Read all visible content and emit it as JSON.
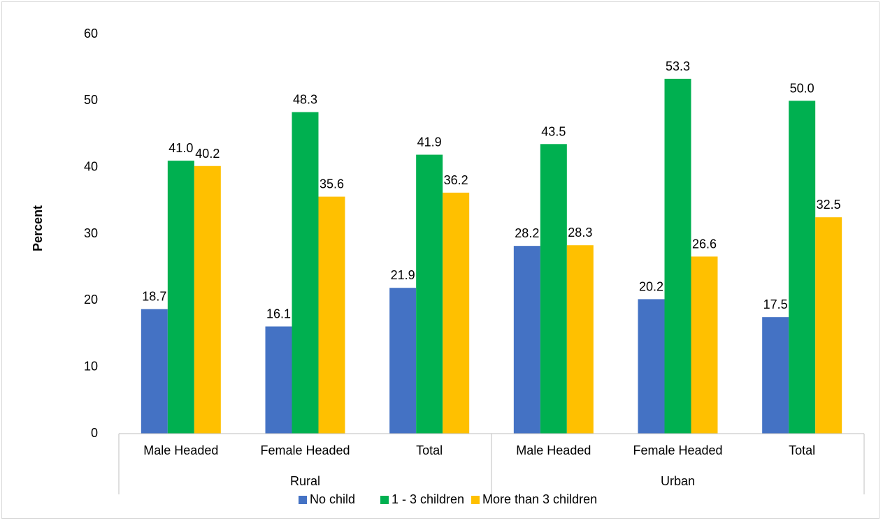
{
  "chart_data": {
    "type": "bar",
    "title": "",
    "ylabel": "Percent",
    "xlabel": "",
    "ylim": [
      0,
      60
    ],
    "yticks": [
      0,
      10,
      20,
      30,
      40,
      50,
      60
    ],
    "grid": false,
    "legend_position": "bottom",
    "categories": [
      "Male Headed",
      "Female Headed",
      "Total",
      "Male Headed",
      "Female Headed",
      "Total"
    ],
    "groups": [
      {
        "label": "Rural",
        "span": 3
      },
      {
        "label": "Urban",
        "span": 3
      }
    ],
    "series": [
      {
        "name": "No child",
        "color": "#4472C4",
        "values": [
          18.7,
          16.1,
          21.9,
          28.2,
          20.2,
          17.5
        ],
        "labels": [
          "18.7",
          "16.1",
          "21.9",
          "28.2",
          "20.2",
          "17.5"
        ]
      },
      {
        "name": "1 - 3 children",
        "color": "#00B050",
        "values": [
          41.0,
          48.3,
          41.9,
          43.5,
          53.3,
          50.0
        ],
        "labels": [
          "41.0",
          "48.3",
          "41.9",
          "43.5",
          "53.3",
          "50.0"
        ]
      },
      {
        "name": "More than 3 children",
        "color": "#FFC000",
        "values": [
          40.2,
          35.6,
          36.2,
          28.3,
          26.6,
          32.5
        ],
        "labels": [
          "40.2",
          "35.6",
          "36.2",
          "28.3",
          "26.6",
          "32.5"
        ]
      }
    ]
  }
}
